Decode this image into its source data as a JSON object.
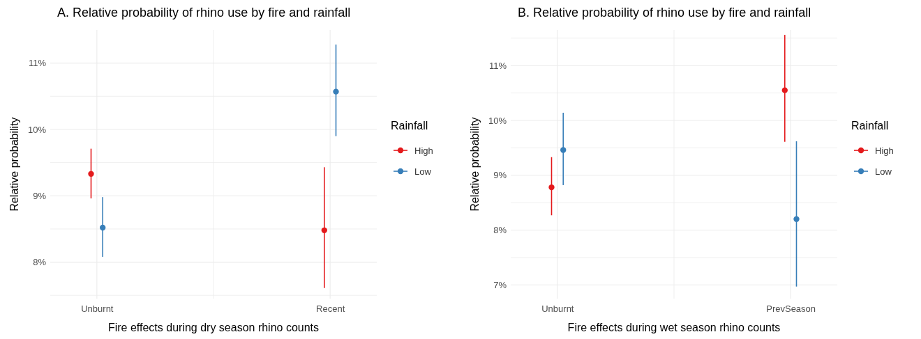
{
  "chart_data": [
    {
      "type": "scatter",
      "title": "A. Relative probability of rhino use by fire and rainfall",
      "xlabel": "Fire effects during dry season rhino counts",
      "ylabel": "Relative probability",
      "legend_title": "Rainfall",
      "legend": "right",
      "grid": true,
      "marker": "circle",
      "categories": [
        "Unburnt",
        "Recent"
      ],
      "ylim": [
        7.45,
        11.5
      ],
      "yticks": [
        {
          "value": 7.5,
          "label": null
        },
        {
          "value": 8,
          "label": "8%"
        },
        {
          "value": 8.5,
          "label": null
        },
        {
          "value": 9,
          "label": "9%"
        },
        {
          "value": 9.5,
          "label": null
        },
        {
          "value": 10,
          "label": "10%"
        },
        {
          "value": 10.5,
          "label": null
        },
        {
          "value": 11,
          "label": "11%"
        }
      ],
      "series": [
        {
          "name": "High",
          "color": "#e41a1c",
          "values": [
            9.33,
            8.48
          ],
          "errors": [
            [
              8.96,
              9.71
            ],
            [
              7.61,
              9.43
            ]
          ]
        },
        {
          "name": "Low",
          "color": "#377eb8",
          "values": [
            8.52,
            10.57
          ],
          "errors": [
            [
              8.08,
              8.98
            ],
            [
              9.9,
              11.28
            ]
          ]
        }
      ]
    },
    {
      "type": "scatter",
      "title": "B. Relative probability of rhino use by fire and rainfall",
      "xlabel": "Fire effects during wet season rhino counts",
      "ylabel": "Relative probability",
      "legend_title": "Rainfall",
      "legend": "right",
      "grid": true,
      "marker": "circle",
      "categories": [
        "Unburnt",
        "PrevSeason"
      ],
      "ylim": [
        6.75,
        11.65
      ],
      "yticks": [
        {
          "value": 7,
          "label": "7%"
        },
        {
          "value": 7.5,
          "label": null
        },
        {
          "value": 8,
          "label": "8%"
        },
        {
          "value": 8.5,
          "label": null
        },
        {
          "value": 9,
          "label": "9%"
        },
        {
          "value": 9.5,
          "label": null
        },
        {
          "value": 10,
          "label": "10%"
        },
        {
          "value": 10.5,
          "label": null
        },
        {
          "value": 11,
          "label": "11%"
        },
        {
          "value": 11.5,
          "label": null
        }
      ],
      "series": [
        {
          "name": "High",
          "color": "#e41a1c",
          "values": [
            8.78,
            10.55
          ],
          "errors": [
            [
              8.27,
              9.33
            ],
            [
              9.61,
              11.56
            ]
          ]
        },
        {
          "name": "Low",
          "color": "#377eb8",
          "values": [
            9.46,
            8.2
          ],
          "errors": [
            [
              8.82,
              10.14
            ],
            [
              6.97,
              9.62
            ]
          ]
        }
      ]
    }
  ]
}
